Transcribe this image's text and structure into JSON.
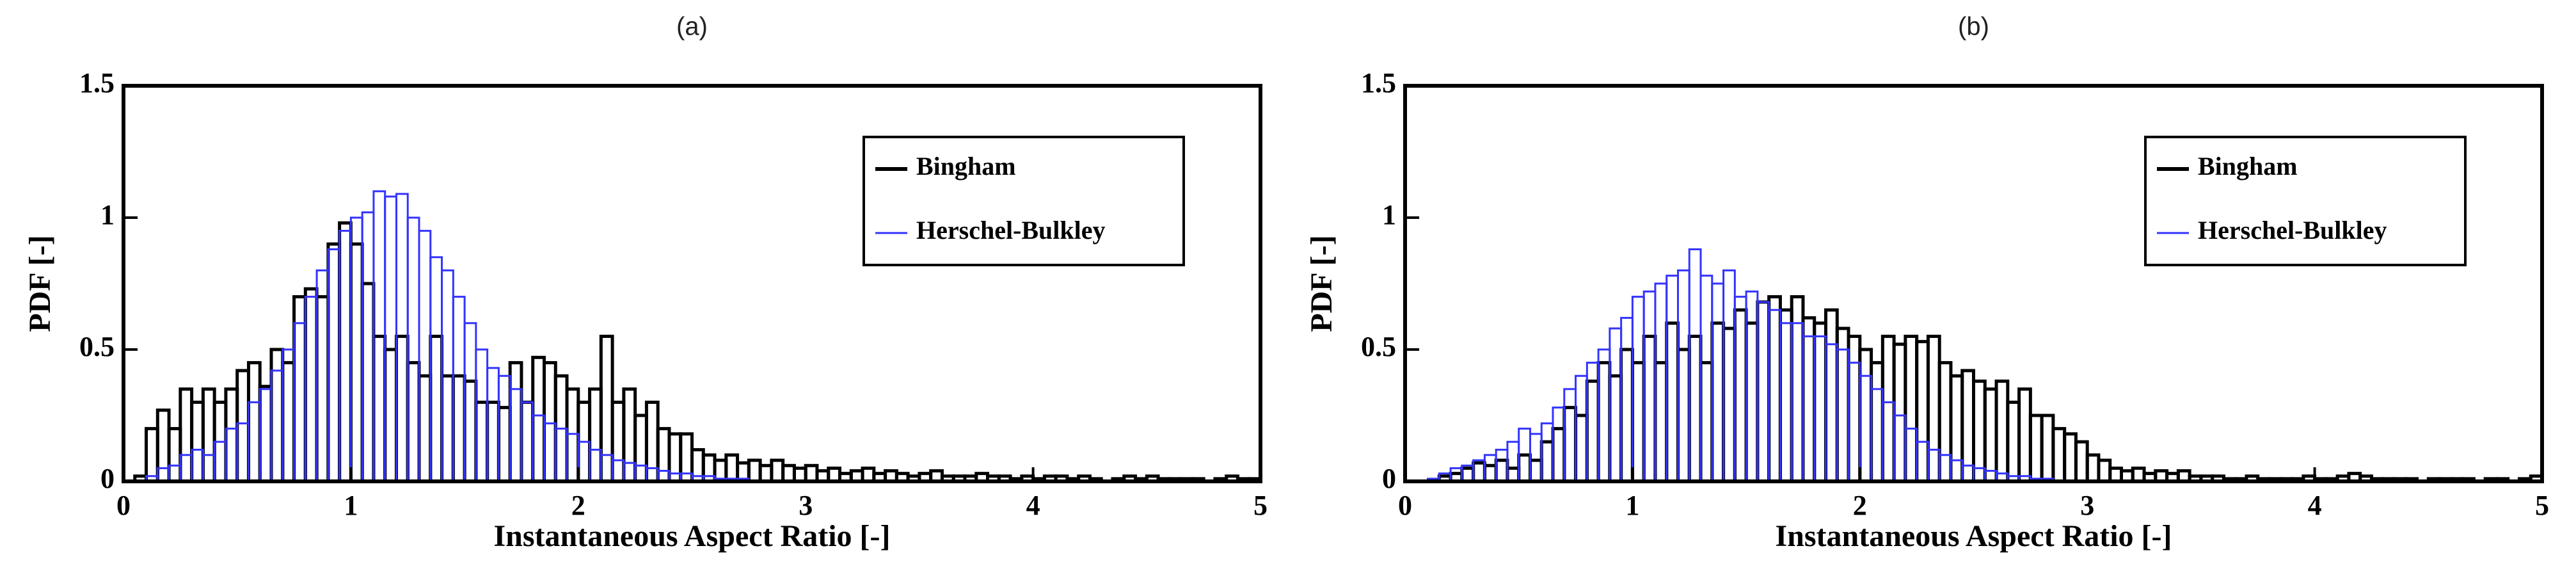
{
  "chart_data": [
    {
      "type": "histogram",
      "title": "(a)",
      "xlabel": "Instantaneous Aspect Ratio [-]",
      "ylabel": "PDF [-]",
      "bins": [
        0,
        0.05,
        0.1,
        0.15,
        0.2,
        0.25,
        0.3,
        0.35,
        0.4,
        0.45,
        0.5,
        0.55,
        0.6,
        0.65,
        0.7,
        0.75,
        0.8,
        0.85,
        0.9,
        0.95,
        1,
        1.05,
        1.1,
        1.15,
        1.2,
        1.25,
        1.3,
        1.35,
        1.4,
        1.45,
        1.5,
        1.55,
        1.6,
        1.65,
        1.7,
        1.75,
        1.8,
        1.85,
        1.9,
        1.95,
        2,
        2.05,
        2.1,
        2.15,
        2.2,
        2.25,
        2.3,
        2.35,
        2.4,
        2.45,
        2.5,
        2.55,
        2.6,
        2.65,
        2.7,
        2.75,
        2.8,
        2.85,
        2.9,
        2.95,
        3,
        3.05,
        3.1,
        3.15,
        3.2,
        3.25,
        3.3,
        3.35,
        3.4,
        3.45,
        3.5,
        3.55,
        3.6,
        3.65,
        3.7,
        3.75,
        3.8,
        3.85,
        3.9,
        3.95,
        4,
        4.05,
        4.1,
        4.15,
        4.2,
        4.25,
        4.3,
        4.35,
        4.4,
        4.45,
        4.5,
        4.55,
        4.6,
        4.65,
        4.7,
        4.75,
        4.8,
        4.85,
        4.9,
        4.95,
        5
      ],
      "series": [
        {
          "name": "Bingham",
          "color": "#000000",
          "values": [
            0,
            0.02,
            0.2,
            0.27,
            0.2,
            0.35,
            0.3,
            0.35,
            0.3,
            0.35,
            0.42,
            0.45,
            0.36,
            0.5,
            0.45,
            0.7,
            0.73,
            0.7,
            0.9,
            0.98,
            0.9,
            0.75,
            0.55,
            0.5,
            0.55,
            0.45,
            0.4,
            0.55,
            0.4,
            0.4,
            0.38,
            0.3,
            0.3,
            0.28,
            0.45,
            0.3,
            0.47,
            0.45,
            0.4,
            0.35,
            0.3,
            0.35,
            0.55,
            0.3,
            0.35,
            0.25,
            0.3,
            0.2,
            0.18,
            0.18,
            0.12,
            0.1,
            0.08,
            0.1,
            0.07,
            0.08,
            0.06,
            0.08,
            0.06,
            0.05,
            0.06,
            0.04,
            0.05,
            0.03,
            0.04,
            0.05,
            0.03,
            0.04,
            0.03,
            0.02,
            0.03,
            0.04,
            0.02,
            0.02,
            0.02,
            0.03,
            0.02,
            0.02,
            0.01,
            0.02,
            0.01,
            0.02,
            0.02,
            0.01,
            0.02,
            0.01,
            0,
            0.01,
            0.02,
            0.01,
            0.02,
            0.01,
            0.01,
            0.01,
            0.01,
            0,
            0.01,
            0.02,
            0.01,
            0.01
          ]
        },
        {
          "name": "Herschel-Bulkley",
          "color": "#3333ff",
          "values": [
            0,
            0,
            0.02,
            0.05,
            0.06,
            0.1,
            0.12,
            0.1,
            0.15,
            0.2,
            0.22,
            0.3,
            0.35,
            0.42,
            0.5,
            0.6,
            0.7,
            0.8,
            0.88,
            0.95,
            1,
            1.02,
            1.1,
            1.08,
            1.09,
            1,
            0.95,
            0.85,
            0.8,
            0.7,
            0.6,
            0.5,
            0.43,
            0.4,
            0.35,
            0.3,
            0.25,
            0.22,
            0.2,
            0.18,
            0.15,
            0.12,
            0.1,
            0.08,
            0.07,
            0.06,
            0.05,
            0.04,
            0.03,
            0.03,
            0.02,
            0.02,
            0.01,
            0.01,
            0.01,
            0,
            0,
            0,
            0,
            0,
            0,
            0,
            0,
            0,
            0,
            0,
            0,
            0,
            0,
            0,
            0,
            0,
            0,
            0,
            0,
            0,
            0,
            0,
            0,
            0,
            0,
            0,
            0,
            0,
            0,
            0,
            0,
            0,
            0,
            0,
            0,
            0,
            0,
            0,
            0,
            0,
            0,
            0,
            0,
            0
          ]
        }
      ],
      "xlim": [
        0,
        5
      ],
      "ylim": [
        0,
        1.5
      ],
      "xticks": [
        0,
        1,
        2,
        3,
        4,
        5
      ],
      "yticks": [
        0,
        0.5,
        1,
        1.5
      ],
      "legend": "upper right"
    },
    {
      "type": "histogram",
      "title": "(b)",
      "xlabel": "Instantaneous Aspect Ratio [-]",
      "ylabel": "PDF [-]",
      "bins": [
        0,
        0.05,
        0.1,
        0.15,
        0.2,
        0.25,
        0.3,
        0.35,
        0.4,
        0.45,
        0.5,
        0.55,
        0.6,
        0.65,
        0.7,
        0.75,
        0.8,
        0.85,
        0.9,
        0.95,
        1,
        1.05,
        1.1,
        1.15,
        1.2,
        1.25,
        1.3,
        1.35,
        1.4,
        1.45,
        1.5,
        1.55,
        1.6,
        1.65,
        1.7,
        1.75,
        1.8,
        1.85,
        1.9,
        1.95,
        2,
        2.05,
        2.1,
        2.15,
        2.2,
        2.25,
        2.3,
        2.35,
        2.4,
        2.45,
        2.5,
        2.55,
        2.6,
        2.65,
        2.7,
        2.75,
        2.8,
        2.85,
        2.9,
        2.95,
        3,
        3.05,
        3.1,
        3.15,
        3.2,
        3.25,
        3.3,
        3.35,
        3.4,
        3.45,
        3.5,
        3.55,
        3.6,
        3.65,
        3.7,
        3.75,
        3.8,
        3.85,
        3.9,
        3.95,
        4,
        4.05,
        4.1,
        4.15,
        4.2,
        4.25,
        4.3,
        4.35,
        4.4,
        4.45,
        4.5,
        4.55,
        4.6,
        4.65,
        4.7,
        4.75,
        4.8,
        4.85,
        4.9,
        4.95,
        5
      ],
      "series": [
        {
          "name": "Bingham",
          "color": "#000000",
          "values": [
            0,
            0,
            0,
            0.02,
            0.03,
            0.05,
            0.07,
            0.06,
            0.08,
            0.05,
            0.1,
            0.08,
            0.15,
            0.2,
            0.28,
            0.25,
            0.38,
            0.45,
            0.4,
            0.5,
            0.45,
            0.55,
            0.45,
            0.6,
            0.5,
            0.55,
            0.45,
            0.6,
            0.58,
            0.65,
            0.6,
            0.68,
            0.7,
            0.65,
            0.7,
            0.62,
            0.6,
            0.65,
            0.58,
            0.55,
            0.5,
            0.45,
            0.55,
            0.52,
            0.55,
            0.53,
            0.55,
            0.45,
            0.4,
            0.42,
            0.38,
            0.35,
            0.38,
            0.3,
            0.35,
            0.25,
            0.25,
            0.2,
            0.18,
            0.15,
            0.1,
            0.08,
            0.05,
            0.04,
            0.05,
            0.03,
            0.04,
            0.03,
            0.04,
            0.02,
            0.02,
            0.02,
            0.01,
            0.01,
            0.02,
            0.01,
            0.01,
            0.01,
            0.01,
            0.02,
            0.01,
            0.01,
            0.02,
            0.03,
            0.02,
            0.01,
            0.01,
            0.01,
            0.01,
            0,
            0.01,
            0.01,
            0.01,
            0.01,
            0,
            0.01,
            0.01,
            0,
            0.01,
            0.02
          ]
        },
        {
          "name": "Herschel-Bulkley",
          "color": "#3333ff",
          "values": [
            0,
            0,
            0.01,
            0.03,
            0.05,
            0.06,
            0.08,
            0.1,
            0.12,
            0.15,
            0.2,
            0.18,
            0.22,
            0.28,
            0.35,
            0.4,
            0.45,
            0.5,
            0.58,
            0.62,
            0.7,
            0.72,
            0.75,
            0.78,
            0.8,
            0.88,
            0.78,
            0.75,
            0.8,
            0.7,
            0.72,
            0.68,
            0.65,
            0.6,
            0.6,
            0.55,
            0.55,
            0.52,
            0.5,
            0.45,
            0.4,
            0.35,
            0.3,
            0.25,
            0.2,
            0.15,
            0.12,
            0.1,
            0.08,
            0.06,
            0.05,
            0.04,
            0.03,
            0.02,
            0.02,
            0.01,
            0.01,
            0,
            0,
            0,
            0,
            0,
            0,
            0,
            0,
            0,
            0,
            0,
            0,
            0,
            0,
            0,
            0,
            0,
            0,
            0,
            0,
            0,
            0,
            0,
            0,
            0,
            0,
            0,
            0,
            0,
            0,
            0,
            0,
            0,
            0,
            0,
            0,
            0,
            0,
            0,
            0,
            0,
            0,
            0
          ]
        }
      ],
      "xlim": [
        0,
        5
      ],
      "ylim": [
        0,
        1.5
      ],
      "xticks": [
        0,
        1,
        2,
        3,
        4,
        5
      ],
      "yticks": [
        0,
        0.5,
        1,
        1.5
      ],
      "legend": "upper right"
    }
  ]
}
